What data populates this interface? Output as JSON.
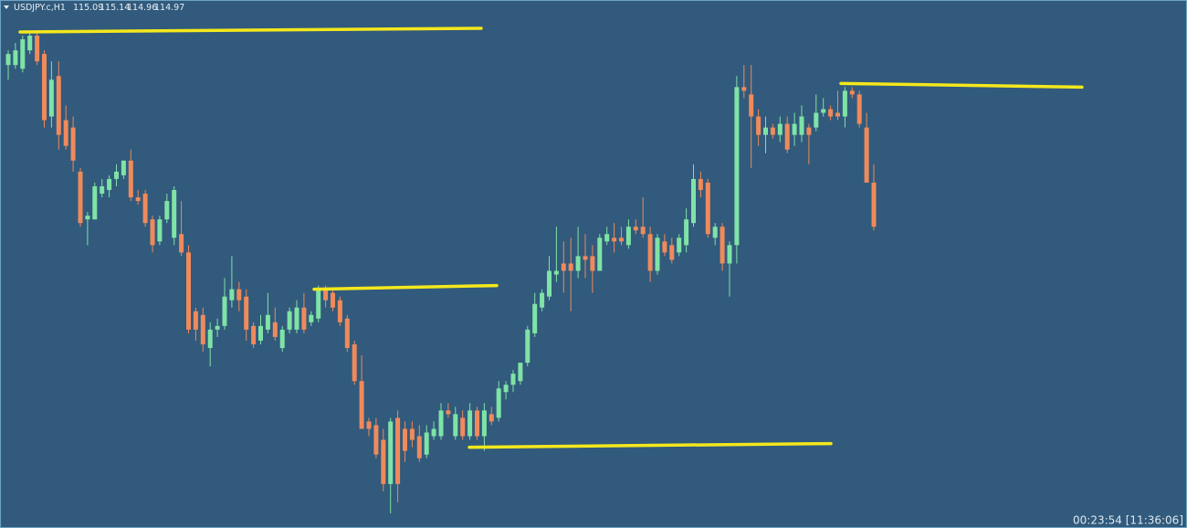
{
  "chart_data": {
    "type": "candlestick",
    "title": "USDJPY.c,H1",
    "timer": "00:23:54 [11:36:06]",
    "up_color": "#7fe3a6",
    "down_color": "#f08a5b",
    "level_color": "#f4e81c",
    "candles": [
      [
        115.41,
        115.45,
        115.37,
        115.44
      ],
      [
        115.41,
        115.47,
        115.4,
        115.45
      ],
      [
        115.4,
        115.49,
        115.39,
        115.48
      ],
      [
        115.45,
        115.5,
        115.44,
        115.49
      ],
      [
        115.49,
        115.5,
        115.41,
        115.42
      ],
      [
        115.44,
        115.45,
        115.24,
        115.26
      ],
      [
        115.27,
        115.42,
        115.24,
        115.37
      ],
      [
        115.38,
        115.42,
        115.18,
        115.22
      ],
      [
        115.26,
        115.3,
        115.18,
        115.19
      ],
      [
        115.24,
        115.27,
        115.12,
        115.15
      ],
      [
        115.12,
        115.13,
        114.97,
        114.98
      ],
      [
        114.99,
        115.01,
        114.92,
        115
      ],
      [
        114.99,
        115.09,
        114.99,
        115.08
      ],
      [
        115.06,
        115.1,
        115.05,
        115.08
      ],
      [
        115.07,
        115.11,
        115.05,
        115.1
      ],
      [
        115.1,
        115.14,
        115.08,
        115.12
      ],
      [
        115.11,
        115.15,
        115.1,
        115.15
      ],
      [
        115.15,
        115.18,
        115.04,
        115.05
      ],
      [
        115.05,
        115.07,
        115.03,
        115.04
      ],
      [
        115.06,
        115.07,
        114.97,
        114.98
      ],
      [
        114.99,
        115,
        114.9,
        114.92
      ],
      [
        114.93,
        115,
        114.92,
        114.99
      ],
      [
        114.99,
        115.06,
        114.98,
        115.04
      ],
      [
        114.94,
        115.08,
        114.92,
        115.07
      ],
      [
        114.95,
        115.04,
        114.89,
        114.9
      ],
      [
        114.9,
        114.92,
        114.68,
        114.69
      ],
      [
        114.74,
        114.75,
        114.66,
        114.69
      ],
      [
        114.73,
        114.75,
        114.63,
        114.65
      ],
      [
        114.64,
        114.71,
        114.59,
        114.69
      ],
      [
        114.69,
        114.72,
        114.67,
        114.7
      ],
      [
        114.7,
        114.83,
        114.69,
        114.78
      ],
      [
        114.77,
        114.89,
        114.75,
        114.8
      ],
      [
        114.8,
        114.82,
        114.74,
        114.77
      ],
      [
        114.78,
        114.8,
        114.66,
        114.69
      ],
      [
        114.7,
        114.71,
        114.64,
        114.65
      ],
      [
        114.66,
        114.73,
        114.65,
        114.7
      ],
      [
        114.69,
        114.79,
        114.68,
        114.73
      ],
      [
        114.71,
        114.75,
        114.66,
        114.67
      ],
      [
        114.64,
        114.7,
        114.63,
        114.69
      ],
      [
        114.69,
        114.75,
        114.68,
        114.74
      ],
      [
        114.69,
        114.77,
        114.68,
        114.75
      ],
      [
        114.75,
        114.79,
        114.68,
        114.69
      ],
      [
        114.71,
        114.74,
        114.7,
        114.73
      ],
      [
        114.72,
        114.81,
        114.71,
        114.8
      ],
      [
        114.8,
        114.81,
        114.75,
        114.77
      ],
      [
        114.79,
        114.8,
        114.74,
        114.75
      ],
      [
        114.77,
        114.78,
        114.7,
        114.71
      ],
      [
        114.72,
        114.73,
        114.63,
        114.64
      ],
      [
        114.65,
        114.66,
        114.54,
        114.55
      ],
      [
        114.55,
        114.62,
        114.42,
        114.42
      ],
      [
        114.44,
        114.45,
        114.4,
        114.42
      ],
      [
        114.43,
        114.45,
        114.34,
        114.35
      ],
      [
        114.39,
        114.42,
        114.25,
        114.27
      ],
      [
        114.27,
        114.45,
        114.19,
        114.44
      ],
      [
        114.45,
        114.47,
        114.22,
        114.27
      ],
      [
        114.42,
        114.44,
        114.33,
        114.36
      ],
      [
        114.42,
        114.44,
        114.37,
        114.39
      ],
      [
        114.4,
        114.43,
        114.33,
        114.34
      ],
      [
        114.35,
        114.43,
        114.34,
        114.41
      ],
      [
        114.4,
        114.44,
        114.39,
        114.42
      ],
      [
        114.4,
        114.49,
        114.39,
        114.47
      ],
      [
        114.47,
        114.49,
        114.45,
        114.46
      ],
      [
        114.4,
        114.48,
        114.39,
        114.46
      ],
      [
        114.45,
        114.47,
        114.39,
        114.4
      ],
      [
        114.4,
        114.49,
        114.39,
        114.47
      ],
      [
        114.47,
        114.48,
        114.39,
        114.4
      ],
      [
        114.4,
        114.49,
        114.36,
        114.47
      ],
      [
        114.46,
        114.48,
        114.43,
        114.44
      ],
      [
        114.45,
        114.55,
        114.44,
        114.53
      ],
      [
        114.52,
        114.55,
        114.5,
        114.54
      ],
      [
        114.54,
        114.58,
        114.52,
        114.57
      ],
      [
        114.55,
        114.6,
        114.54,
        114.6
      ],
      [
        114.6,
        114.7,
        114.59,
        114.69
      ],
      [
        114.68,
        114.79,
        114.67,
        114.76
      ],
      [
        114.75,
        114.8,
        114.74,
        114.79
      ],
      [
        114.78,
        114.89,
        114.77,
        114.85
      ],
      [
        114.84,
        114.97,
        114.82,
        114.85
      ],
      [
        114.87,
        114.93,
        114.79,
        114.85
      ],
      [
        114.87,
        114.94,
        114.74,
        114.85
      ],
      [
        114.85,
        114.97,
        114.83,
        114.89
      ],
      [
        114.89,
        114.95,
        114.83,
        114.88
      ],
      [
        114.89,
        114.92,
        114.79,
        114.85
      ],
      [
        114.85,
        114.95,
        114.85,
        114.94
      ],
      [
        114.93,
        114.97,
        114.92,
        114.95
      ],
      [
        114.94,
        114.98,
        114.9,
        114.93
      ],
      [
        114.94,
        114.97,
        114.92,
        114.93
      ],
      [
        114.92,
        114.99,
        114.91,
        114.97
      ],
      [
        114.97,
        114.99,
        114.95,
        114.96
      ],
      [
        114.97,
        115.05,
        114.94,
        114.95
      ],
      [
        114.95,
        114.97,
        114.82,
        114.85
      ],
      [
        114.85,
        114.95,
        114.84,
        114.94
      ],
      [
        114.93,
        114.95,
        114.89,
        114.9
      ],
      [
        114.92,
        114.94,
        114.87,
        114.88
      ],
      [
        114.9,
        114.95,
        114.89,
        114.94
      ],
      [
        114.92,
        115.02,
        114.9,
        114.99
      ],
      [
        114.98,
        115.14,
        114.97,
        115.1
      ],
      [
        115.1,
        115.12,
        115.05,
        115.07
      ],
      [
        115.09,
        115.1,
        114.94,
        114.95
      ],
      [
        114.94,
        114.98,
        114.92,
        114.97
      ],
      [
        114.97,
        114.98,
        114.85,
        114.87
      ],
      [
        114.87,
        114.93,
        114.78,
        114.92
      ],
      [
        114.92,
        115.38,
        114.87,
        115.35
      ],
      [
        115.35,
        115.41,
        115.32,
        115.34
      ],
      [
        115.33,
        115.41,
        115.13,
        115.27
      ],
      [
        115.27,
        115.29,
        115.19,
        115.22
      ],
      [
        115.22,
        115.27,
        115.17,
        115.24
      ],
      [
        115.24,
        115.25,
        115.21,
        115.22
      ],
      [
        115.22,
        115.27,
        115.2,
        115.25
      ],
      [
        115.25,
        115.27,
        115.17,
        115.18
      ],
      [
        115.22,
        115.28,
        115.19,
        115.25
      ],
      [
        115.22,
        115.3,
        115.2,
        115.27
      ],
      [
        115.24,
        115.25,
        115.14,
        115.22
      ],
      [
        115.24,
        115.33,
        115.23,
        115.28
      ],
      [
        115.28,
        115.32,
        115.27,
        115.29
      ],
      [
        115.29,
        115.3,
        115.26,
        115.27
      ],
      [
        115.28,
        115.34,
        115.26,
        115.27
      ],
      [
        115.27,
        115.35,
        115.24,
        115.34
      ],
      [
        115.34,
        115.35,
        115.32,
        115.33
      ],
      [
        115.33,
        115.34,
        115.24,
        115.25
      ],
      [
        115.24,
        115.28,
        115.09,
        115.09
      ],
      [
        115.09,
        115.14,
        114.96,
        114.97
      ]
    ],
    "levels": [
      [
        115.5,
        115.51
      ],
      [
        114.8,
        114.81
      ],
      [
        114.37,
        114.38
      ],
      [
        115.36,
        115.35
      ]
    ]
  }
}
